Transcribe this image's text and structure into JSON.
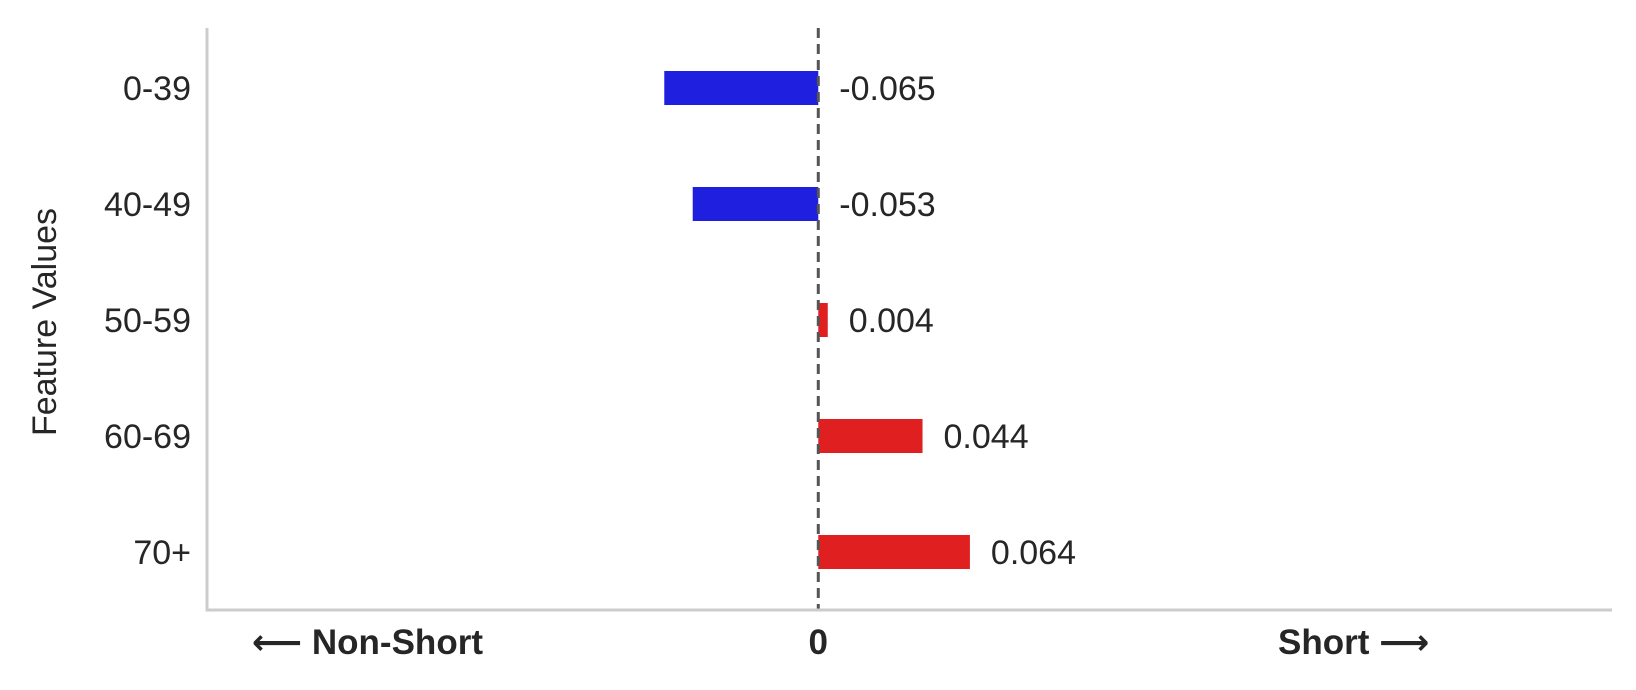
{
  "chart_data": {
    "type": "bar",
    "orientation": "horizontal",
    "categories": [
      "0-39",
      "40-49",
      "50-59",
      "60-69",
      "70+"
    ],
    "values": [
      -0.065,
      -0.053,
      0.004,
      0.044,
      0.064
    ],
    "value_labels": [
      "-0.065",
      "-0.053",
      "0.004",
      "0.044",
      "0.064"
    ],
    "ylabel": "Feature Values",
    "xlim": [
      -0.258,
      0.335
    ],
    "reference_line": 0,
    "grid": false,
    "x_annotations": {
      "left": "⟵  Non-Short",
      "center": "0",
      "right": "Short  ⟶"
    },
    "colors": {
      "negative": "#1f1fdf",
      "positive": "#e02020",
      "reference_line": "#555555",
      "axis": "#cccccc",
      "text": "#262626"
    }
  }
}
